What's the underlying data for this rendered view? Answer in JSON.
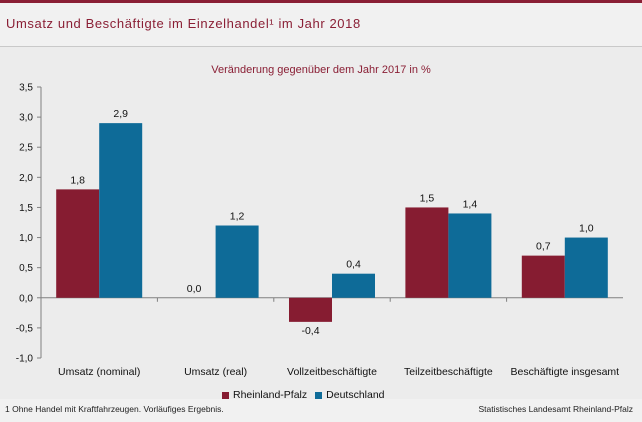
{
  "title": "Umsatz und Beschäftigte im Einzelhandel¹ im Jahr 2018",
  "footnote": "1 Ohne Handel mit Kraftfahrzeugen.  Vorläufiges  Ergebnis.",
  "source": "Statistisches Landesamt Rheinland-Pfalz",
  "colors": {
    "rlp": "#861c31",
    "de": "#0e6b98",
    "title": "#8a1f35"
  },
  "chart_data": {
    "type": "bar",
    "title": "Veränderung  gegenüber dem Jahr 2017 in %",
    "categories": [
      "Umsatz (nominal)",
      "Umsatz (real)",
      "Vollzeitbeschäftigte",
      "Teilzeitbeschäftigte",
      "Beschäftigte insgesamt"
    ],
    "series": [
      {
        "name": "Rheinland-Pfalz",
        "values": [
          1.8,
          0.0,
          -0.4,
          1.5,
          0.7
        ],
        "labels": [
          "1,8",
          "0,0",
          "-0,4",
          "1,5",
          "0,7"
        ]
      },
      {
        "name": "Deutschland",
        "values": [
          2.9,
          1.2,
          0.4,
          1.4,
          1.0
        ],
        "labels": [
          "2,9",
          "1,2",
          "0,4",
          "1,4",
          "1,0"
        ]
      }
    ],
    "ylim": [
      -1.0,
      3.5
    ],
    "yticks": [
      -1.0,
      -0.5,
      0.0,
      0.5,
      1.0,
      1.5,
      2.0,
      2.5,
      3.0,
      3.5
    ],
    "ytick_labels": [
      "-1,0",
      "-0,5",
      "0,0",
      "0,5",
      "1,0",
      "1,5",
      "2,0",
      "2,5",
      "3,0",
      "3,5"
    ],
    "grid": false,
    "legend": "bottom-center"
  }
}
